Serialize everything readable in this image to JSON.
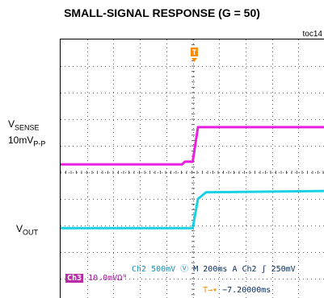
{
  "chart_data": {
    "type": "line",
    "title": "SMALL-SIGNAL RESPONSE (G = 50)",
    "figure_id": "toc14",
    "x": {
      "divisions": 10,
      "time_per_div": "200ms"
    },
    "series": [
      {
        "name_main": "V",
        "name_sub": "SENSE",
        "scale_main": "10mV",
        "scale_sub": "P-P",
        "color": "#e81fe0",
        "points": [
          [
            0,
            0.3
          ],
          [
            4.6,
            0.3
          ],
          [
            4.7,
            0.4
          ],
          [
            5.0,
            0.4
          ],
          [
            5.2,
            1.7
          ],
          [
            10,
            1.7
          ]
        ]
      },
      {
        "name_main": "V",
        "name_sub": "OUT",
        "color": "#19d1e3",
        "points": [
          [
            0,
            -2.1
          ],
          [
            5.0,
            -2.1
          ],
          [
            5.2,
            -1.0
          ],
          [
            5.5,
            -0.75
          ],
          [
            10,
            -0.7
          ]
        ]
      }
    ],
    "ylim": [
      -4,
      4
    ]
  },
  "status": {
    "ch2": "Ch2  500mV",
    "ch2_symbol": "Ⓥ",
    "timebase": "M 200ms",
    "trigger": "A  Ch2  ʃ  250mV",
    "ch3_tag": "Ch3",
    "ch3": "10.0mVΩᴺ",
    "trigger_marker": "T",
    "trigger_arrow": "→▾",
    "delay": "−7.20000ms"
  },
  "colors": {
    "grid": "#606060",
    "sense": "#e81fe0",
    "vout": "#19d1e3"
  }
}
